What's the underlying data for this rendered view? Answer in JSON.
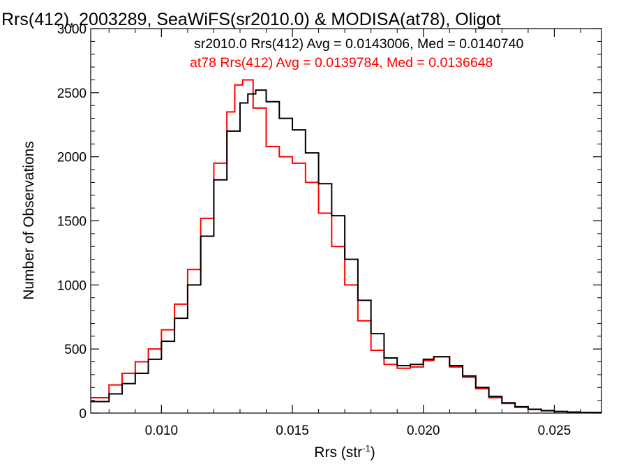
{
  "chart_data": {
    "type": "line",
    "style": "histogram-step",
    "title": "Rrs(412), 2003289, SeaWiFS(sr2010.0) & MODISA(at78), Oligot",
    "xlabel": "Rrs (str",
    "xlabel_sup": "-1",
    "xlabel_close": ")",
    "ylabel": "Number of Observations",
    "xlim": [
      0.0073,
      0.0268
    ],
    "ylim": [
      0,
      3000
    ],
    "x_ticks": [
      0.01,
      0.015,
      0.02,
      0.025
    ],
    "x_tick_labels": [
      "0.010",
      "0.015",
      "0.020",
      "0.025"
    ],
    "y_ticks": [
      0,
      500,
      1000,
      1500,
      2000,
      2500,
      3000
    ],
    "y_tick_labels": [
      "0",
      "500",
      "1000",
      "1500",
      "2000",
      "2500",
      "3000"
    ],
    "grid": false,
    "legend_position": "top-right",
    "legend": [
      "sr2010.0 Rrs(412) Avg = 0.0143006, Med = 0.0140740",
      "at78 Rrs(412) Avg = 0.0139784, Med = 0.0136648"
    ],
    "series": [
      {
        "name": "sr2010.0",
        "color": "#000000",
        "x": [
          0.0073,
          0.008,
          0.0085,
          0.009,
          0.0095,
          0.01,
          0.0105,
          0.011,
          0.0115,
          0.012,
          0.0125,
          0.013,
          0.0133,
          0.0136,
          0.014,
          0.0145,
          0.015,
          0.0155,
          0.016,
          0.0165,
          0.017,
          0.0175,
          0.018,
          0.0185,
          0.019,
          0.0195,
          0.02,
          0.0204,
          0.021,
          0.0215,
          0.022,
          0.0225,
          0.023,
          0.0235,
          0.024,
          0.0245,
          0.025,
          0.0255,
          0.026,
          0.0268
        ],
        "y": [
          90,
          150,
          230,
          310,
          420,
          560,
          740,
          1000,
          1380,
          1820,
          2200,
          2420,
          2490,
          2520,
          2430,
          2300,
          2210,
          2030,
          1790,
          1540,
          1200,
          880,
          620,
          430,
          370,
          380,
          420,
          440,
          370,
          290,
          200,
          130,
          80,
          50,
          30,
          20,
          12,
          8,
          5,
          3
        ]
      },
      {
        "name": "at78",
        "color": "#ff0000",
        "x": [
          0.0073,
          0.008,
          0.0085,
          0.009,
          0.0095,
          0.01,
          0.0105,
          0.011,
          0.0115,
          0.012,
          0.0125,
          0.0128,
          0.0131,
          0.0135,
          0.014,
          0.0145,
          0.015,
          0.0155,
          0.016,
          0.0165,
          0.017,
          0.0175,
          0.018,
          0.0185,
          0.019,
          0.0195,
          0.02,
          0.0204,
          0.021,
          0.0215,
          0.022,
          0.0225,
          0.023,
          0.0235,
          0.024,
          0.0245,
          0.025,
          0.0255,
          0.026,
          0.0268
        ],
        "y": [
          120,
          220,
          310,
          400,
          500,
          650,
          850,
          1120,
          1520,
          1950,
          2350,
          2560,
          2600,
          2380,
          2080,
          2000,
          1950,
          1800,
          1560,
          1300,
          1000,
          720,
          490,
          380,
          350,
          360,
          410,
          440,
          360,
          280,
          190,
          120,
          75,
          45,
          28,
          18,
          12,
          8,
          5,
          3
        ]
      }
    ]
  }
}
